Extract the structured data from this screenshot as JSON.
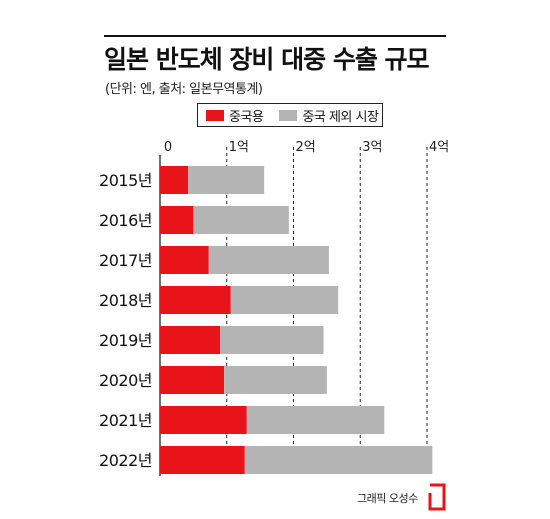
{
  "title": "일본 반도체 장비 대중 수출 규모",
  "subtitle": "(단위: 엔, 출처: 일본무역통계)",
  "credit": "그래픽 오성수",
  "colors": {
    "china": "#e8141a",
    "other": "#b4b4b4",
    "grid": "#222222"
  },
  "chart_data": {
    "type": "bar",
    "orientation": "horizontal",
    "stacked": true,
    "categories": [
      "2015년",
      "2016년",
      "2017년",
      "2018년",
      "2019년",
      "2020년",
      "2021년",
      "2022년"
    ],
    "series": [
      {
        "name": "중국용",
        "values": [
          0.42,
          0.5,
          0.73,
          1.06,
          0.9,
          0.96,
          1.3,
          1.27
        ]
      },
      {
        "name": "중국 제외 시장",
        "values": [
          1.14,
          1.43,
          1.8,
          1.61,
          1.55,
          1.54,
          2.06,
          2.81
        ]
      }
    ],
    "xticks": [
      {
        "value": 0,
        "label": "0"
      },
      {
        "value": 1,
        "label": "1억"
      },
      {
        "value": 2,
        "label": "2억"
      },
      {
        "value": 3,
        "label": "3억"
      },
      {
        "value": 4,
        "label": "4억"
      }
    ],
    "xlim": [
      0,
      4
    ],
    "grid": "vertical-dashed",
    "legend": "top"
  }
}
